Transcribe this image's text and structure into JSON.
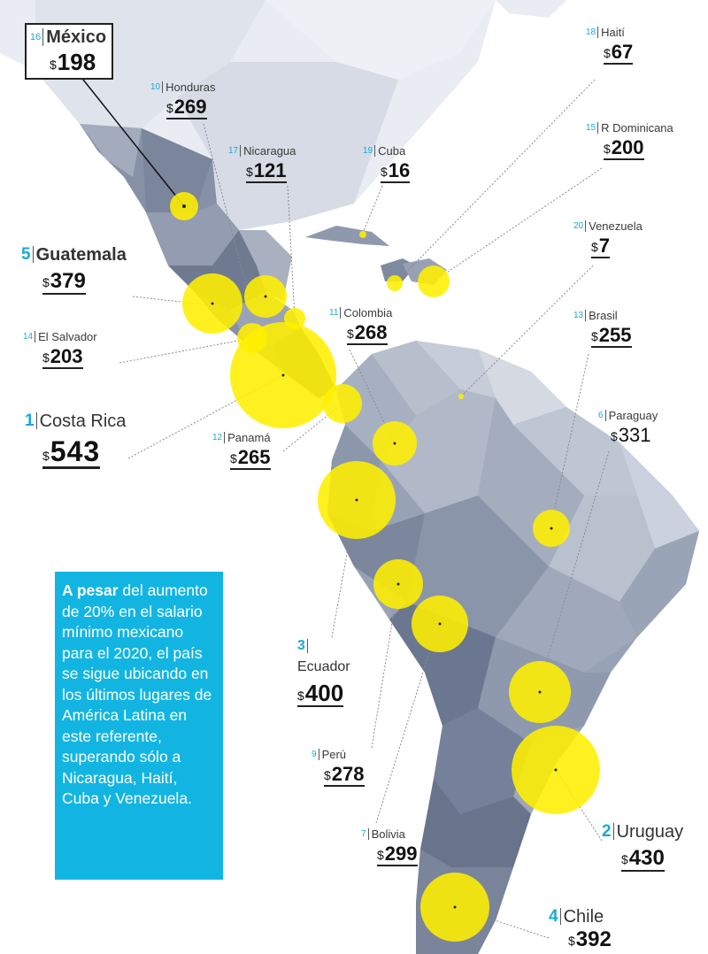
{
  "colors": {
    "accent": "#12b5e2",
    "bubble": "#ffef00",
    "land": "#8e99ad",
    "land_light": "#c9d0dc",
    "ink": "#111111"
  },
  "currency_symbol": "$",
  "note": {
    "lead": "A pesar",
    "body": " del aumento de 20% en el salario mínimo mexicano para el 2020, el país se sigue ubicando en los últimos lugares de América Latina en este referente, superando sólo a Nicaragua, Haití, Cuba y Venezuela."
  },
  "countries": [
    {
      "id": "mexico",
      "rank": "16",
      "name": "México",
      "value": 198
    },
    {
      "id": "honduras",
      "rank": "10",
      "name": "Honduras",
      "value": 269
    },
    {
      "id": "nicaragua",
      "rank": "17",
      "name": "Nicaragua",
      "value": 121
    },
    {
      "id": "cuba",
      "rank": "19",
      "name": "Cuba",
      "value": 16
    },
    {
      "id": "haiti",
      "rank": "18",
      "name": "Haití",
      "value": 67
    },
    {
      "id": "rdominicana",
      "rank": "15",
      "name": "R Dominicana",
      "value": 200
    },
    {
      "id": "venezuela",
      "rank": "20",
      "name": "Venezuela",
      "value": 7
    },
    {
      "id": "guatemala",
      "rank": "5",
      "name": "Guatemala",
      "value": 379
    },
    {
      "id": "elsalvador",
      "rank": "14",
      "name": "El Salvador",
      "value": 203
    },
    {
      "id": "colombia",
      "rank": "11",
      "name": "Colombia",
      "value": 268
    },
    {
      "id": "brasil",
      "rank": "13",
      "name": "Brasil",
      "value": 255
    },
    {
      "id": "costarica",
      "rank": "1",
      "name": "Costa Rica",
      "value": 543
    },
    {
      "id": "panama",
      "rank": "12",
      "name": "Panamá",
      "value": 265
    },
    {
      "id": "paraguay",
      "rank": "6",
      "name": "Paraguay",
      "value": 331
    },
    {
      "id": "ecuador",
      "rank": "3",
      "name": "Ecuador",
      "value": 400
    },
    {
      "id": "peru",
      "rank": "9",
      "name": "Perú",
      "value": 278
    },
    {
      "id": "bolivia",
      "rank": "7",
      "name": "Bolivia",
      "value": 299
    },
    {
      "id": "uruguay",
      "rank": "2",
      "name": "Uruguay",
      "value": 430
    },
    {
      "id": "chile",
      "rank": "4",
      "name": "Chile",
      "value": 392
    }
  ]
}
